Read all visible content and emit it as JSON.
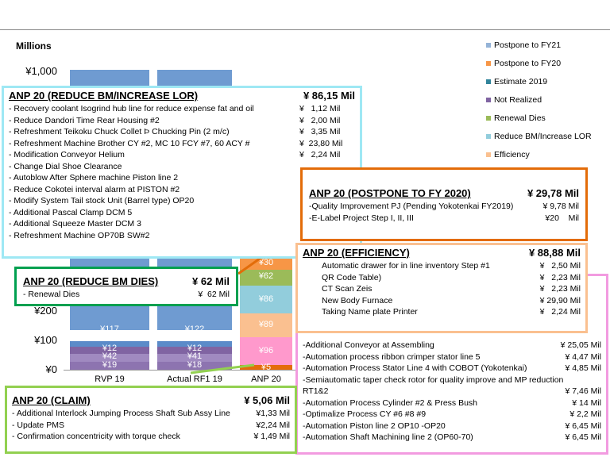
{
  "chart": {
    "unit": "Millions",
    "yticks": [
      "¥1,000",
      "¥200",
      "¥100",
      "¥0"
    ],
    "categories": [
      "RVP 19",
      "Actual RF1 19",
      "ANP 20"
    ],
    "segment_labels": [
      [
        "¥117",
        "¥12",
        "¥42",
        "¥19"
      ],
      [
        "¥122",
        "¥12",
        "¥41",
        "¥18"
      ],
      [
        "¥30",
        "¥62",
        "¥86",
        "¥89",
        "¥96",
        "¥5"
      ]
    ]
  },
  "legend": [
    "Postpone to FY21",
    "Postpone to FY20",
    "Estimate 2019",
    "Not Realized",
    "Renewal Dies",
    "Reduce BM/Increase LOR",
    "Efficiency"
  ],
  "boxes": {
    "lor": {
      "title": "ANP 20 (REDUCE BM/INCREASE LOR)",
      "total": "¥ 86,15 Mil",
      "items": [
        [
          "Recovery coolant Isogrind hub line for reduce expense fat and oil",
          "¥   1,12 Mil"
        ],
        [
          "Reduce Dandori Time Rear Housing #2",
          "¥   2,00 Mil"
        ],
        [
          "Refreshment Teikoku Chuck Collet Þ Chucking Pin (2 m/c)",
          "¥   3,35 Mil"
        ],
        [
          "Refreshment Machine Brother CY #2, MC 10 FCY #7, 60 ACY #",
          "¥  23,80 Mil"
        ],
        [
          "Modification Conveyor Helium",
          "¥   2,24 Mil"
        ],
        [
          "Change Dial Shoe Clearance",
          ""
        ],
        [
          "Autoblow After Sphere machine Piston line 2",
          ""
        ],
        [
          "Reduce Cokotei interval alarm at PISTON #2",
          ""
        ],
        [
          "Modify System Tail stock Unit (Barrel type) OP20",
          ""
        ],
        [
          "Additional Pascal Clamp DCM 5",
          ""
        ],
        [
          "Additional Squeeze Master DCM 3",
          ""
        ],
        [
          "Refreshment Machine OP70B SW#2",
          ""
        ]
      ]
    },
    "efficiency": {
      "title": "ANP 20 (EFFICIENCY)",
      "total": "¥ 88,88 Mil",
      "items": [
        [
          "Automatic drawer for in line inventory Step #1",
          "¥   2,50 Mil"
        ],
        [
          "QR Code Table)",
          "¥   2,23 Mil"
        ],
        [
          "CT Scan Zeis",
          "¥   2,23 Mil"
        ],
        [
          "New Body Furnace",
          "¥ 29,90 Mil"
        ],
        [
          "Taking Name plate Printer",
          "¥   2,24 Mil"
        ]
      ]
    },
    "pink": {
      "items": [
        [
          "-Additional Conveyor at Assembling",
          "¥ 25,05 Mil"
        ],
        [
          "-Automation process ribbon crimper stator line 5",
          "¥ 4,47 Mil"
        ],
        [
          "-Automation Process Stator Line 4 with COBOT (Yokotenkai)",
          "¥ 4,85 Mil"
        ],
        [
          "-Semiautomatic taper check rotor for quality improve and MP reduction RT1&2",
          "¥ 7,46 Mil"
        ],
        [
          "-Automation Process Cylinder #2 & Press Bush",
          "¥ 14 Mil"
        ],
        [
          "-Optimalize Process CY #6 #8 #9",
          "¥ 2,2 Mil"
        ],
        [
          "-Automation Piston line 2 OP10 -OP20",
          "¥ 6,45 Mil"
        ],
        [
          "-Automation Shaft Machining line 2  (OP60-70)",
          "¥ 6,45 Mil"
        ]
      ]
    },
    "postpone": {
      "title": "ANP 20 (POSTPONE TO FY 2020)",
      "total": "¥ 29,78 Mil",
      "items": [
        [
          "-Quality Improvement PJ (Pending Yokotenkai FY2019)",
          "¥ 9,78 Mil"
        ],
        [
          "-E-Label Project Step I, II, III",
          "¥20    Mil"
        ]
      ]
    },
    "dies": {
      "title": "ANP 20 (REDUCE BM DIES)",
      "total": "¥ 62 Mil",
      "items": [
        [
          "-    Renewal Dies",
          "¥  62 Mil"
        ]
      ]
    },
    "claim": {
      "title": "ANP 20 (CLAIM)",
      "total": "¥ 5,06 Mil",
      "items": [
        [
          "- Additional Interlock Jumping Process Shaft Sub Assy Line",
          "¥1,33 Mil"
        ],
        [
          "- Update PMS",
          "¥2,24 Mil"
        ],
        [
          "- Confirmation concentricity with torque check",
          "¥ 1,49 Mil"
        ]
      ]
    }
  }
}
